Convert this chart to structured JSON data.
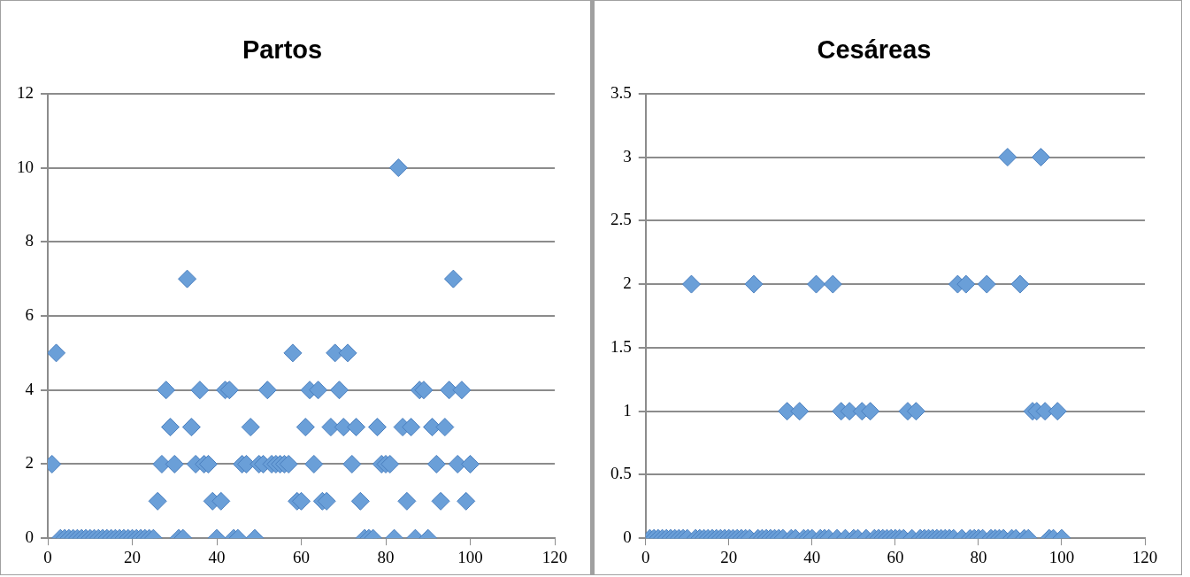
{
  "chart_data": [
    {
      "type": "scatter",
      "title": "Partos",
      "color": "#6a9fd8",
      "marker": "diamond",
      "grid": "y",
      "xlim": [
        0,
        120
      ],
      "xticks": [
        0,
        20,
        40,
        60,
        80,
        100,
        120
      ],
      "ylim": [
        0,
        12
      ],
      "yticks": [
        0,
        2,
        4,
        6,
        8,
        10,
        12
      ],
      "x": [
        1,
        2,
        3,
        4,
        5,
        6,
        7,
        8,
        9,
        10,
        11,
        12,
        13,
        14,
        15,
        16,
        17,
        18,
        19,
        20,
        21,
        22,
        23,
        24,
        25,
        26,
        27,
        28,
        29,
        30,
        31,
        32,
        33,
        34,
        35,
        36,
        37,
        38,
        39,
        40,
        41,
        42,
        43,
        44,
        45,
        46,
        47,
        48,
        49,
        50,
        51,
        52,
        53,
        54,
        55,
        56,
        57,
        58,
        59,
        60,
        61,
        62,
        63,
        64,
        65,
        66,
        67,
        68,
        69,
        70,
        71,
        72,
        73,
        74,
        75,
        76,
        77,
        78,
        79,
        80,
        81,
        82,
        83,
        84,
        85,
        86,
        87,
        88,
        89,
        90,
        91,
        92,
        93,
        94,
        95,
        96,
        97,
        98,
        99,
        100
      ],
      "values": [
        2,
        5,
        0,
        0,
        0,
        0,
        0,
        0,
        0,
        0,
        0,
        0,
        0,
        0,
        0,
        0,
        0,
        0,
        0,
        0,
        0,
        0,
        0,
        0,
        0,
        1,
        2,
        4,
        3,
        2,
        0,
        0,
        7,
        3,
        2,
        4,
        2,
        2,
        1,
        0,
        1,
        4,
        4,
        0,
        0,
        2,
        2,
        3,
        0,
        2,
        2,
        4,
        2,
        2,
        2,
        2,
        2,
        5,
        1,
        1,
        3,
        4,
        2,
        4,
        1,
        1,
        3,
        5,
        4,
        3,
        5,
        2,
        3,
        1,
        0,
        0,
        0,
        3,
        2,
        2,
        2,
        0,
        10,
        3,
        1,
        3,
        0,
        4,
        4,
        0,
        3,
        2,
        1,
        3,
        4,
        7,
        2,
        4,
        1,
        2
      ]
    },
    {
      "type": "scatter",
      "title": "Cesáreas",
      "color": "#6a9fd8",
      "marker": "diamond",
      "grid": "y",
      "xlim": [
        0,
        120
      ],
      "xticks": [
        0,
        20,
        40,
        60,
        80,
        100,
        120
      ],
      "ylim": [
        0,
        3.5
      ],
      "yticks": [
        0,
        0.5,
        1,
        1.5,
        2,
        2.5,
        3,
        3.5
      ],
      "x": [
        1,
        2,
        3,
        4,
        5,
        6,
        7,
        8,
        9,
        10,
        11,
        12,
        13,
        14,
        15,
        16,
        17,
        18,
        19,
        20,
        21,
        22,
        23,
        24,
        25,
        26,
        27,
        28,
        29,
        30,
        31,
        32,
        33,
        34,
        35,
        36,
        37,
        38,
        39,
        40,
        41,
        42,
        43,
        44,
        45,
        46,
        47,
        48,
        49,
        50,
        51,
        52,
        53,
        54,
        55,
        56,
        57,
        58,
        59,
        60,
        61,
        62,
        63,
        64,
        65,
        66,
        67,
        68,
        69,
        70,
        71,
        72,
        73,
        74,
        75,
        76,
        77,
        78,
        79,
        80,
        81,
        82,
        83,
        84,
        85,
        86,
        87,
        88,
        89,
        90,
        91,
        92,
        93,
        94,
        95,
        96,
        97,
        98,
        99,
        100
      ],
      "values": [
        0,
        0,
        0,
        0,
        0,
        0,
        0,
        0,
        0,
        0,
        2,
        0,
        0,
        0,
        0,
        0,
        0,
        0,
        0,
        0,
        0,
        0,
        0,
        0,
        0,
        2,
        0,
        0,
        0,
        0,
        0,
        0,
        0,
        1,
        0,
        0,
        1,
        0,
        0,
        0,
        2,
        0,
        0,
        0,
        2,
        0,
        1,
        0,
        1,
        0,
        0,
        1,
        0,
        1,
        0,
        0,
        0,
        0,
        0,
        0,
        0,
        0,
        1,
        0,
        1,
        0,
        0,
        0,
        0,
        0,
        0,
        0,
        0,
        0,
        2,
        0,
        2,
        0,
        0,
        0,
        0,
        2,
        0,
        0,
        0,
        0,
        3,
        0,
        0,
        2,
        0,
        0,
        1,
        1,
        3,
        1,
        0,
        0,
        1,
        0
      ]
    }
  ]
}
